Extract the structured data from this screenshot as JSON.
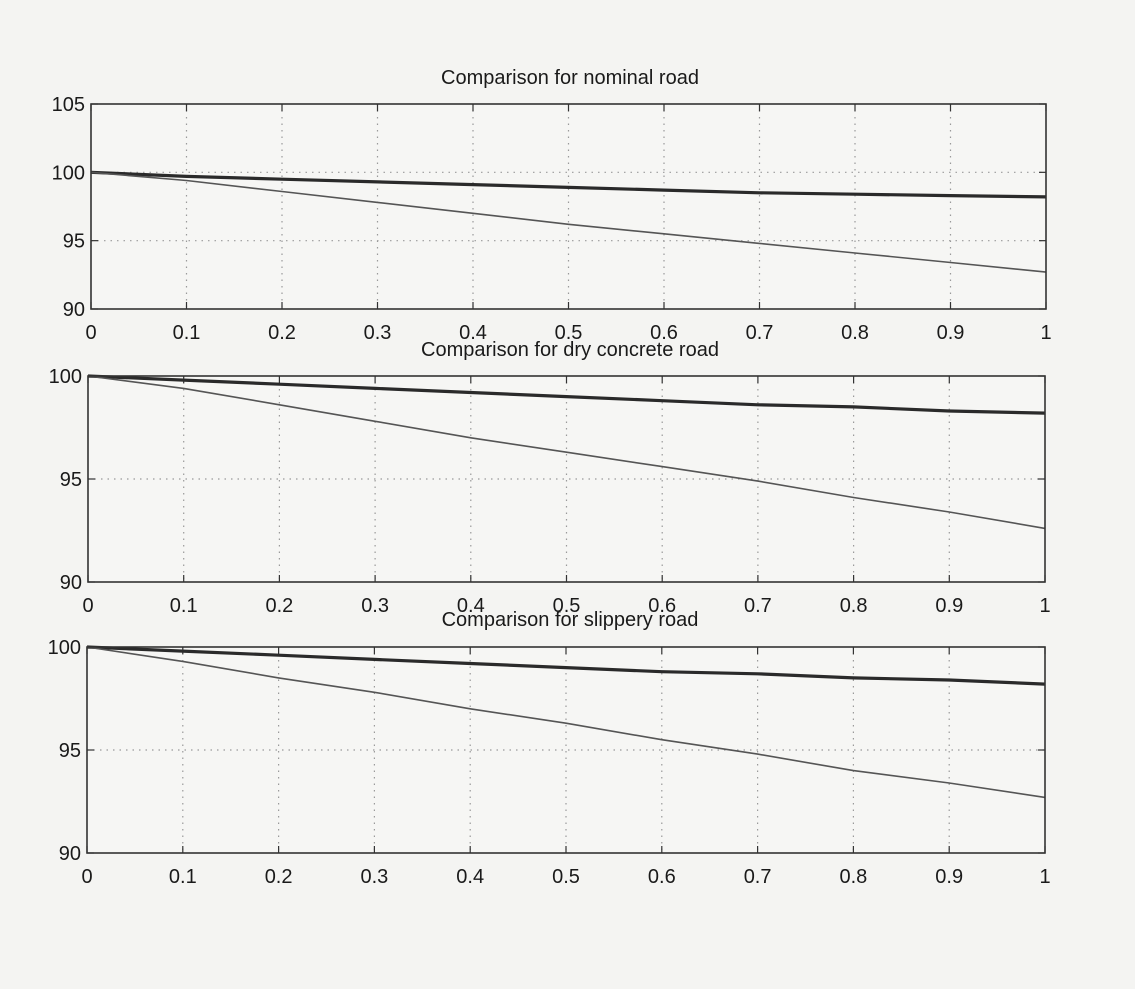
{
  "chart_data": [
    {
      "type": "line",
      "title": "Comparison for nominal road",
      "xlim": [
        0,
        1
      ],
      "ylim": [
        90,
        105
      ],
      "xticks": [
        "0",
        "0.1",
        "0.2",
        "0.3",
        "0.4",
        "0.5",
        "0.6",
        "0.7",
        "0.8",
        "0.9",
        "1"
      ],
      "yticks": [
        "90",
        "95",
        "100",
        "105"
      ],
      "grid": true,
      "colors": {
        "thick": "#2a2a2a",
        "thin": "#555555",
        "grid": "#9a9a9a",
        "axes": "#333333"
      },
      "series": [
        {
          "style": "thick",
          "x": [
            0,
            0.1,
            0.2,
            0.3,
            0.4,
            0.5,
            0.6,
            0.7,
            0.8,
            0.9,
            1
          ],
          "y": [
            100,
            99.7,
            99.5,
            99.3,
            99.1,
            98.9,
            98.7,
            98.5,
            98.4,
            98.3,
            98.2
          ]
        },
        {
          "style": "thin",
          "x": [
            0,
            0.1,
            0.2,
            0.3,
            0.4,
            0.5,
            0.6,
            0.7,
            0.8,
            0.9,
            1
          ],
          "y": [
            100,
            99.4,
            98.6,
            97.8,
            97.0,
            96.2,
            95.5,
            94.8,
            94.1,
            93.4,
            92.7
          ]
        }
      ]
    },
    {
      "type": "line",
      "title": "Comparison for dry concrete road",
      "xlim": [
        0,
        1
      ],
      "ylim": [
        90,
        100
      ],
      "xticks": [
        "0",
        "0.1",
        "0.2",
        "0.3",
        "0.4",
        "0.5",
        "0.6",
        "0.7",
        "0.8",
        "0.9",
        "1"
      ],
      "yticks": [
        "90",
        "95",
        "100"
      ],
      "grid": true,
      "colors": {
        "thick": "#2a2a2a",
        "thin": "#555555",
        "grid": "#9a9a9a",
        "axes": "#333333"
      },
      "series": [
        {
          "style": "thick",
          "x": [
            0,
            0.1,
            0.2,
            0.3,
            0.4,
            0.5,
            0.6,
            0.7,
            0.8,
            0.9,
            1
          ],
          "y": [
            100,
            99.8,
            99.6,
            99.4,
            99.2,
            99.0,
            98.8,
            98.6,
            98.5,
            98.3,
            98.2
          ]
        },
        {
          "style": "thin",
          "x": [
            0,
            0.1,
            0.2,
            0.3,
            0.4,
            0.5,
            0.6,
            0.7,
            0.8,
            0.9,
            1
          ],
          "y": [
            100,
            99.4,
            98.6,
            97.8,
            97.0,
            96.3,
            95.6,
            94.9,
            94.1,
            93.4,
            92.6
          ]
        }
      ]
    },
    {
      "type": "line",
      "title": "Comparison for slippery road",
      "xlim": [
        0,
        1
      ],
      "ylim": [
        90,
        100
      ],
      "xticks": [
        "0",
        "0.1",
        "0.2",
        "0.3",
        "0.4",
        "0.5",
        "0.6",
        "0.7",
        "0.8",
        "0.9",
        "1"
      ],
      "yticks": [
        "90",
        "95",
        "100"
      ],
      "grid": true,
      "colors": {
        "thick": "#2a2a2a",
        "thin": "#555555",
        "grid": "#9a9a9a",
        "axes": "#333333"
      },
      "series": [
        {
          "style": "thick",
          "x": [
            0,
            0.1,
            0.2,
            0.3,
            0.4,
            0.5,
            0.6,
            0.7,
            0.8,
            0.9,
            1
          ],
          "y": [
            100,
            99.8,
            99.6,
            99.4,
            99.2,
            99.0,
            98.8,
            98.7,
            98.5,
            98.4,
            98.2
          ]
        },
        {
          "style": "thin",
          "x": [
            0,
            0.1,
            0.2,
            0.3,
            0.4,
            0.5,
            0.6,
            0.7,
            0.8,
            0.9,
            1
          ],
          "y": [
            100,
            99.3,
            98.5,
            97.8,
            97.0,
            96.3,
            95.5,
            94.8,
            94.0,
            93.4,
            92.7
          ]
        }
      ]
    }
  ]
}
